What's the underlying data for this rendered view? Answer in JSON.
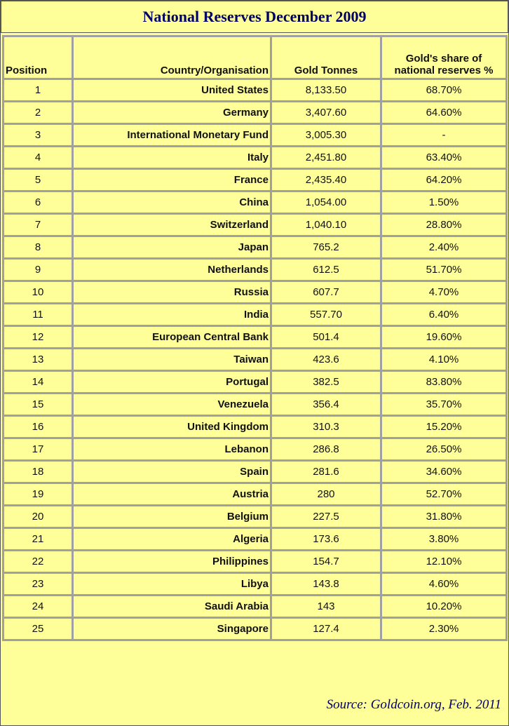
{
  "header": {
    "title": "National Reserves December 2009"
  },
  "table": {
    "columns": [
      "Position",
      "Country/Organisation",
      "Gold Tonnes",
      "Gold's share of\nnational reserves %"
    ],
    "rows": [
      [
        "1",
        "United States",
        "8,133.50",
        "68.70%"
      ],
      [
        "2",
        "Germany",
        "3,407.60",
        "64.60%"
      ],
      [
        "3",
        "International Monetary Fund",
        "3,005.30",
        "-"
      ],
      [
        "4",
        "Italy",
        "2,451.80",
        "63.40%"
      ],
      [
        "5",
        "France",
        "2,435.40",
        "64.20%"
      ],
      [
        "6",
        "China",
        "1,054.00",
        "1.50%"
      ],
      [
        "7",
        "Switzerland",
        "1,040.10",
        "28.80%"
      ],
      [
        "8",
        "Japan",
        "765.2",
        "2.40%"
      ],
      [
        "9",
        "Netherlands",
        "612.5",
        "51.70%"
      ],
      [
        "10",
        "Russia",
        "607.7",
        "4.70%"
      ],
      [
        "11",
        "India",
        "557.70",
        "6.40%"
      ],
      [
        "12",
        "European Central Bank",
        "501.4",
        "19.60%"
      ],
      [
        "13",
        "Taiwan",
        "423.6",
        "4.10%"
      ],
      [
        "14",
        "Portugal",
        "382.5",
        "83.80%"
      ],
      [
        "15",
        "Venezuela",
        "356.4",
        "35.70%"
      ],
      [
        "16",
        "United Kingdom",
        "310.3",
        "15.20%"
      ],
      [
        "17",
        "Lebanon",
        "286.8",
        "26.50%"
      ],
      [
        "18",
        "Spain",
        "281.6",
        "34.60%"
      ],
      [
        "19",
        "Austria",
        "280",
        "52.70%"
      ],
      [
        "20",
        "Belgium",
        "227.5",
        "31.80%"
      ],
      [
        "21",
        "Algeria",
        "173.6",
        "3.80%"
      ],
      [
        "22",
        "Philippines",
        "154.7",
        "12.10%"
      ],
      [
        "23",
        "Libya",
        "143.8",
        "4.60%"
      ],
      [
        "24",
        "Saudi Arabia",
        "143",
        "10.20%"
      ],
      [
        "25",
        "Singapore",
        "127.4",
        "2.30%"
      ]
    ]
  },
  "footer": {
    "source": "Source: Goldcoin.org, Feb. 2011"
  }
}
